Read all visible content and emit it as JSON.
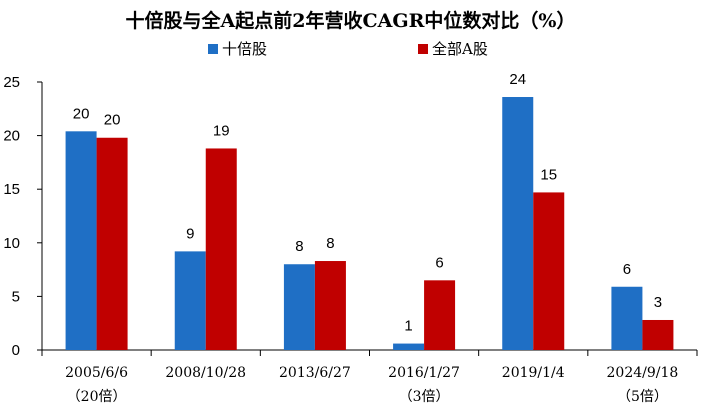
{
  "chart_data": {
    "type": "bar",
    "title": "十倍股与全A起点前2年营收CAGR中位数对比（%）",
    "categories": [
      "2005/6/6",
      "2008/10/28",
      "2013/6/27",
      "2016/1/27",
      "2019/1/4",
      "2024/9/18"
    ],
    "category_notes": [
      "（20倍）",
      "",
      "",
      "（3倍）",
      "",
      "（5倍）"
    ],
    "series": [
      {
        "name": "十倍股",
        "color": "#1F6FC5",
        "values": [
          20.4,
          9.2,
          8.0,
          0.6,
          23.6,
          5.9
        ],
        "labels": [
          "20",
          "9",
          "8",
          "1",
          "24",
          "6"
        ]
      },
      {
        "name": "全部A股",
        "color": "#C00000",
        "values": [
          19.8,
          18.8,
          8.3,
          6.5,
          14.7,
          2.8
        ],
        "labels": [
          "20",
          "19",
          "8",
          "6",
          "15",
          "3"
        ]
      }
    ],
    "ylim": [
      0,
      25
    ],
    "yticks": [
      0,
      5,
      10,
      15,
      20,
      25
    ],
    "grid": false,
    "legend_position": "top"
  }
}
